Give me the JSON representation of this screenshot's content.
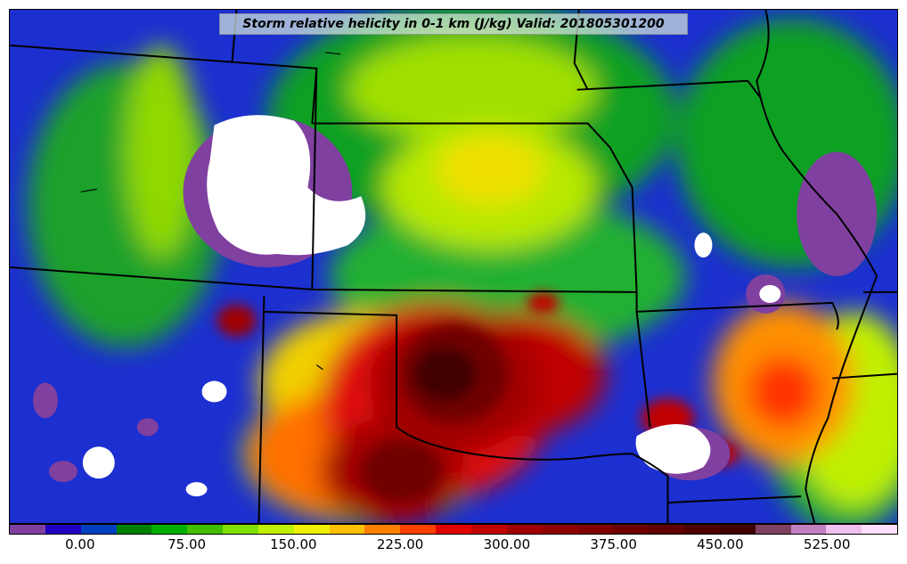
{
  "title": "Storm relative helicity in 0-1 km (J/kg) Valid: 201805301200",
  "colorbar": {
    "min": -50,
    "max": 575,
    "step": 25,
    "colors": [
      "#8040a0",
      "#2000c0",
      "#0040c0",
      "#008000",
      "#00b000",
      "#40c000",
      "#80e000",
      "#c0f000",
      "#f0f000",
      "#ffc000",
      "#ff8000",
      "#ff4000",
      "#e00000",
      "#c00000",
      "#a00000",
      "#900000",
      "#800000",
      "#700000",
      "#600000",
      "#500000",
      "#400000",
      "#804060",
      "#c080c0",
      "#f0c0f0",
      "#ffe0ff"
    ],
    "tick_labels": [
      "0.00",
      "75.00",
      "150.00",
      "225.00",
      "300.00",
      "375.00",
      "450.00",
      "525.00"
    ],
    "tick_values": [
      0,
      75,
      150,
      225,
      300,
      375,
      450,
      525
    ]
  }
}
